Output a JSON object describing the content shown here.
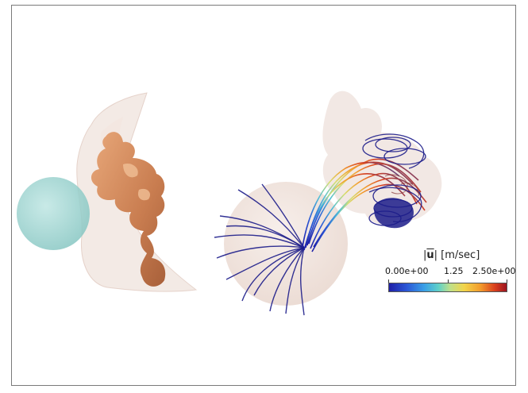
{
  "figure": {
    "left_panel": {
      "sphere_color": "#9fd3d0",
      "membrane_color": "#ead8d0",
      "structure_color": "#d9956a"
    },
    "right_panel": {
      "sphere_color": "#eddcd4",
      "streamline_dark": "#1c1c8a"
    },
    "legend": {
      "title_symbol": "u",
      "title_prefix": "|",
      "title_suffix": "| [m/sec]",
      "min_label": "0.00e+00",
      "mid_label": "1.25",
      "max_label": "2.50e+00",
      "colormap": "jet"
    }
  }
}
